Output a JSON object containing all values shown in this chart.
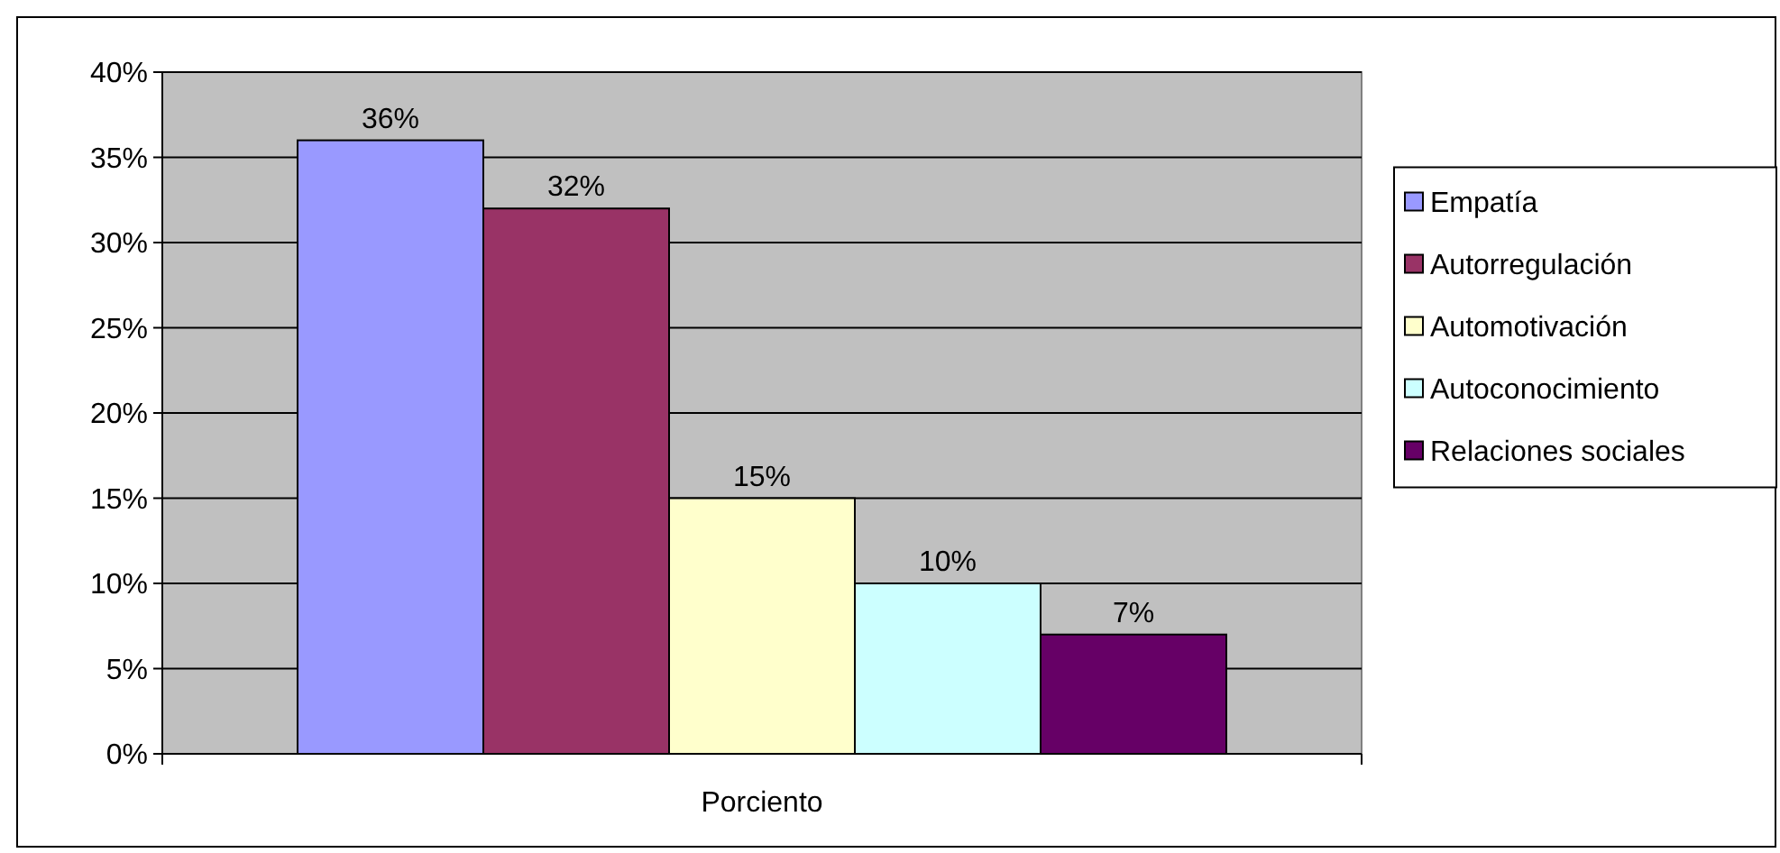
{
  "chart_data": {
    "type": "bar",
    "categories": [
      "Porciento"
    ],
    "series": [
      {
        "name": "Empatía",
        "color": "#9999ff",
        "values": [
          36
        ],
        "value_labels": [
          "36%"
        ]
      },
      {
        "name": "Autorregulación",
        "color": "#993366",
        "values": [
          32
        ],
        "value_labels": [
          "32%"
        ]
      },
      {
        "name": "Automotivación",
        "color": "#ffffcc",
        "values": [
          15
        ],
        "value_labels": [
          "15%"
        ]
      },
      {
        "name": "Autoconocimiento",
        "color": "#ccffff",
        "values": [
          10
        ],
        "value_labels": [
          "10%"
        ]
      },
      {
        "name": "Relaciones sociales",
        "color": "#660066",
        "values": [
          7
        ],
        "value_labels": [
          "7%"
        ]
      }
    ],
    "ylim": [
      0,
      40
    ],
    "yticks": [
      {
        "value": 0,
        "label": "0%"
      },
      {
        "value": 5,
        "label": "5%"
      },
      {
        "value": 10,
        "label": "10%"
      },
      {
        "value": 15,
        "label": "15%"
      },
      {
        "value": 20,
        "label": "20%"
      },
      {
        "value": 25,
        "label": "25%"
      },
      {
        "value": 30,
        "label": "30%"
      },
      {
        "value": 35,
        "label": "35%"
      },
      {
        "value": 40,
        "label": "40%"
      }
    ],
    "grid": "y",
    "legend": "right"
  }
}
